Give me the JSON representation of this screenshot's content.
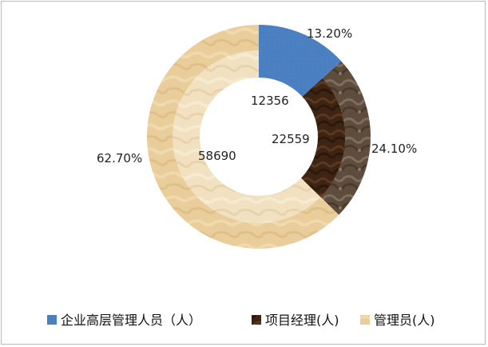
{
  "chart_data": {
    "type": "pie",
    "categories": [
      "企业高层管理人员（人）",
      "项目经理(人)",
      "管理员(人)"
    ],
    "values": [
      12356,
      22559,
      58690
    ],
    "percent_labels": [
      "13.20%",
      "24.10%",
      "62.70%"
    ],
    "value_labels": [
      "12356",
      "22559",
      "58690"
    ],
    "colors": [
      "#4a7fc0",
      "#5e3a22",
      "#e9cd9a"
    ],
    "legend_position": "bottom",
    "style": "doughnut"
  }
}
